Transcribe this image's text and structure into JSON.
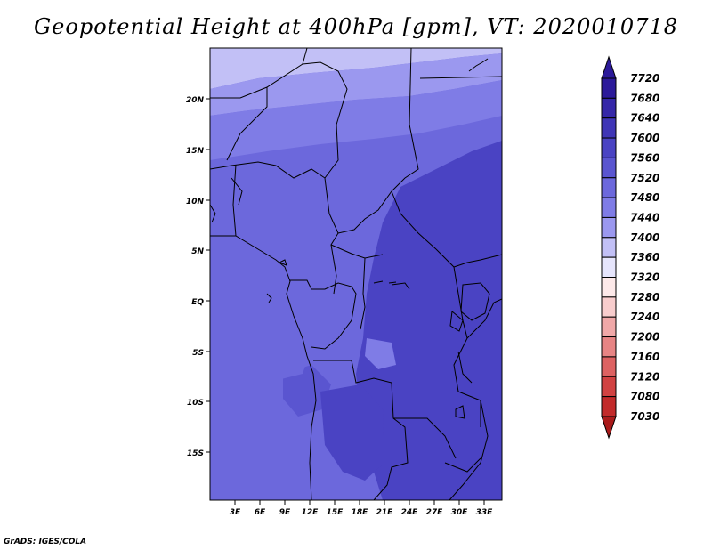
{
  "title": "Geopotential Height at 400hPa [gpm], VT: 2020010718",
  "credit": "GrADS: IGES/COLA",
  "map": {
    "lat_labels": [
      "20N",
      "15N",
      "10N",
      "5N",
      "EQ",
      "5S",
      "10S",
      "15S"
    ],
    "lon_labels": [
      "3E",
      "6E",
      "9E",
      "12E",
      "15E",
      "18E",
      "21E",
      "24E",
      "27E",
      "30E",
      "33E"
    ]
  },
  "colorbar": {
    "levels": [
      "7720",
      "7680",
      "7640",
      "7600",
      "7560",
      "7520",
      "7480",
      "7440",
      "7400",
      "7360",
      "7320",
      "7280",
      "7240",
      "7200",
      "7160",
      "7120",
      "7080",
      "7030"
    ],
    "colors": [
      "#2c1a9a",
      "#3527a8",
      "#3f35b6",
      "#4a43c3",
      "#5a55d0",
      "#6c68dc",
      "#7f7ce6",
      "#9b98ef",
      "#c2c0f6",
      "#e6e5fc",
      "#fde9e9",
      "#f8cdcd",
      "#f0a8a8",
      "#e78484",
      "#dd6262",
      "#d14242",
      "#c22a2a",
      "#aa1a1a"
    ]
  }
}
